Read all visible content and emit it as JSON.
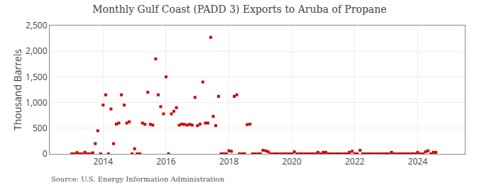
{
  "chart_data": {
    "type": "scatter",
    "title": "Monthly Gulf Coast (PADD 3) Exports to Aruba of Propane",
    "y_label": "Thousand Barrels",
    "annotations": [
      "Source: U.S. Energy Information Administration"
    ],
    "color": "#cc0000",
    "marker": "square",
    "grid": true,
    "xlim": [
      2012.3,
      2025.5
    ],
    "xticks": [
      2014,
      2016,
      2018,
      2020,
      2022,
      2024
    ],
    "ylim": [
      0,
      2500
    ],
    "yticks": [
      0,
      500,
      {
        "value": 1000,
        "label": "1,000"
      },
      {
        "value": 1500,
        "label": "1,500"
      },
      {
        "value": 2000,
        "label": "2,000"
      },
      {
        "value": 2500,
        "label": "2,500"
      }
    ],
    "x": [
      2013.0,
      2013.08,
      2013.17,
      2013.25,
      2013.33,
      2013.42,
      2013.5,
      2013.58,
      2013.67,
      2013.75,
      2013.83,
      2013.92,
      2014.0,
      2014.08,
      2014.17,
      2014.25,
      2014.33,
      2014.42,
      2014.5,
      2014.58,
      2014.67,
      2014.75,
      2014.83,
      2014.92,
      2015.0,
      2015.08,
      2015.17,
      2015.25,
      2015.33,
      2015.42,
      2015.5,
      2015.58,
      2015.67,
      2015.75,
      2015.83,
      2015.92,
      2016.0,
      2016.08,
      2016.17,
      2016.25,
      2016.33,
      2016.42,
      2016.5,
      2016.58,
      2016.67,
      2016.75,
      2016.83,
      2016.92,
      2017.0,
      2017.08,
      2017.17,
      2017.25,
      2017.33,
      2017.42,
      2017.5,
      2017.58,
      2017.67,
      2017.75,
      2017.83,
      2017.92,
      2018.0,
      2018.08,
      2018.17,
      2018.25,
      2018.33,
      2018.42,
      2018.5,
      2018.58,
      2018.67,
      2018.75,
      2018.83,
      2018.92,
      2019.0,
      2019.08,
      2019.17,
      2019.25,
      2019.33,
      2019.42,
      2019.5,
      2019.58,
      2019.67,
      2019.75,
      2019.83,
      2019.92,
      2020.0,
      2020.08,
      2020.17,
      2020.25,
      2020.33,
      2020.42,
      2020.5,
      2020.58,
      2020.67,
      2020.75,
      2020.83,
      2020.92,
      2021.0,
      2021.08,
      2021.17,
      2021.25,
      2021.33,
      2021.42,
      2021.5,
      2021.58,
      2021.67,
      2021.75,
      2021.83,
      2021.92,
      2022.0,
      2022.08,
      2022.17,
      2022.25,
      2022.33,
      2022.42,
      2022.5,
      2022.58,
      2022.67,
      2022.75,
      2022.83,
      2022.92,
      2023.0,
      2023.08,
      2023.17,
      2023.25,
      2023.33,
      2023.42,
      2023.5,
      2023.58,
      2023.67,
      2023.75,
      2023.83,
      2023.92,
      2024.0,
      2024.08,
      2024.17,
      2024.25,
      2024.33,
      2024.42,
      2024.5,
      2024.58
    ],
    "values": [
      0,
      0,
      25,
      0,
      0,
      30,
      0,
      0,
      20,
      200,
      450,
      0,
      950,
      1150,
      0,
      875,
      200,
      580,
      600,
      1150,
      950,
      600,
      625,
      0,
      100,
      0,
      0,
      600,
      575,
      1200,
      575,
      560,
      1850,
      1150,
      920,
      780,
      1500,
      0,
      780,
      830,
      900,
      560,
      580,
      575,
      560,
      575,
      560,
      1100,
      550,
      580,
      1400,
      600,
      600,
      2270,
      730,
      550,
      1120,
      0,
      0,
      0,
      60,
      50,
      1120,
      1150,
      0,
      0,
      0,
      570,
      580,
      0,
      0,
      0,
      0,
      70,
      60,
      40,
      0,
      0,
      0,
      0,
      0,
      0,
      0,
      0,
      0,
      40,
      0,
      0,
      0,
      0,
      0,
      0,
      0,
      0,
      30,
      0,
      30,
      30,
      0,
      0,
      0,
      0,
      0,
      0,
      0,
      0,
      30,
      50,
      0,
      0,
      70,
      0,
      0,
      0,
      0,
      0,
      0,
      0,
      0,
      0,
      0,
      0,
      30,
      0,
      0,
      0,
      0,
      0,
      0,
      0,
      0,
      0,
      30,
      0,
      0,
      40,
      60,
      0,
      30,
      30
    ]
  }
}
